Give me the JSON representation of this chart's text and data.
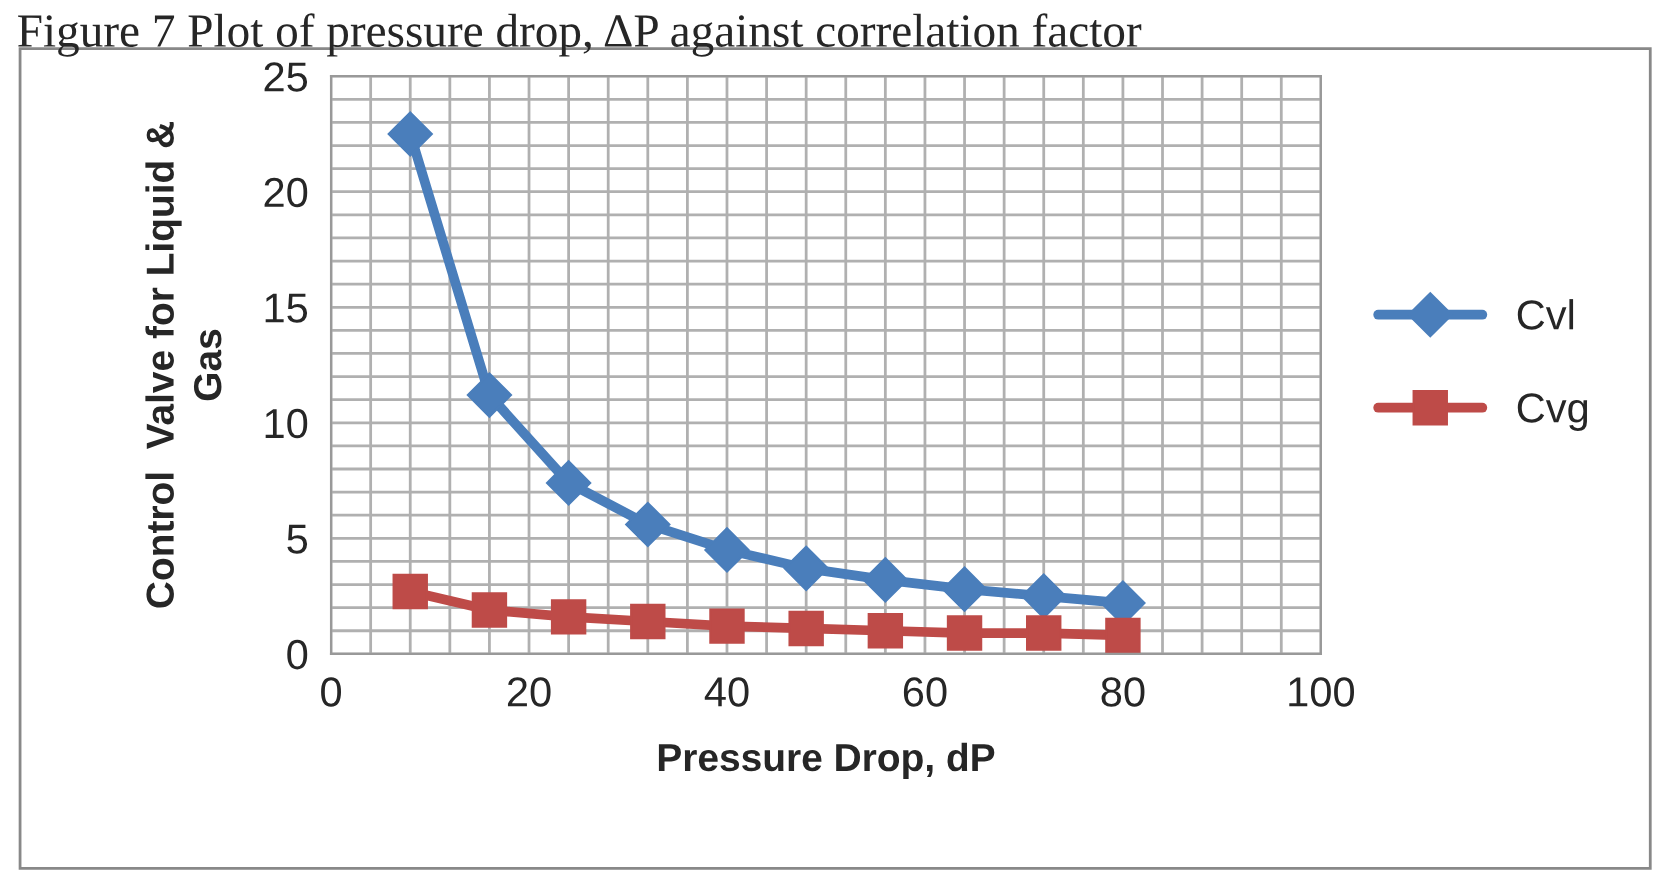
{
  "chart_data": {
    "type": "line",
    "title": "Figure 7 Plot of pressure drop, ΔP against correlation factor",
    "xlabel": "Pressure Drop, dP",
    "ylabel": "Control  Valve for Liquid &\nGas",
    "x": [
      8,
      16,
      24,
      32,
      40,
      48,
      56,
      64,
      72,
      80
    ],
    "series": [
      {
        "name": "Cvl",
        "color": "#4a7ebb",
        "marker": "diamond",
        "values": [
          22.5,
          11.2,
          7.4,
          5.6,
          4.5,
          3.7,
          3.2,
          2.8,
          2.5,
          2.2
        ]
      },
      {
        "name": "Cvg",
        "color": "#be4b48",
        "marker": "square",
        "values": [
          2.7,
          1.9,
          1.6,
          1.4,
          1.2,
          1.1,
          1.0,
          0.9,
          0.9,
          0.8
        ]
      }
    ],
    "xlim": [
      0,
      100
    ],
    "xticks": [
      0,
      20,
      40,
      60,
      80,
      100
    ],
    "ylim": [
      0,
      25
    ],
    "yticks": [
      0,
      5,
      10,
      15,
      20,
      25
    ],
    "grid": true,
    "legend": "right",
    "line_style": "solid"
  }
}
